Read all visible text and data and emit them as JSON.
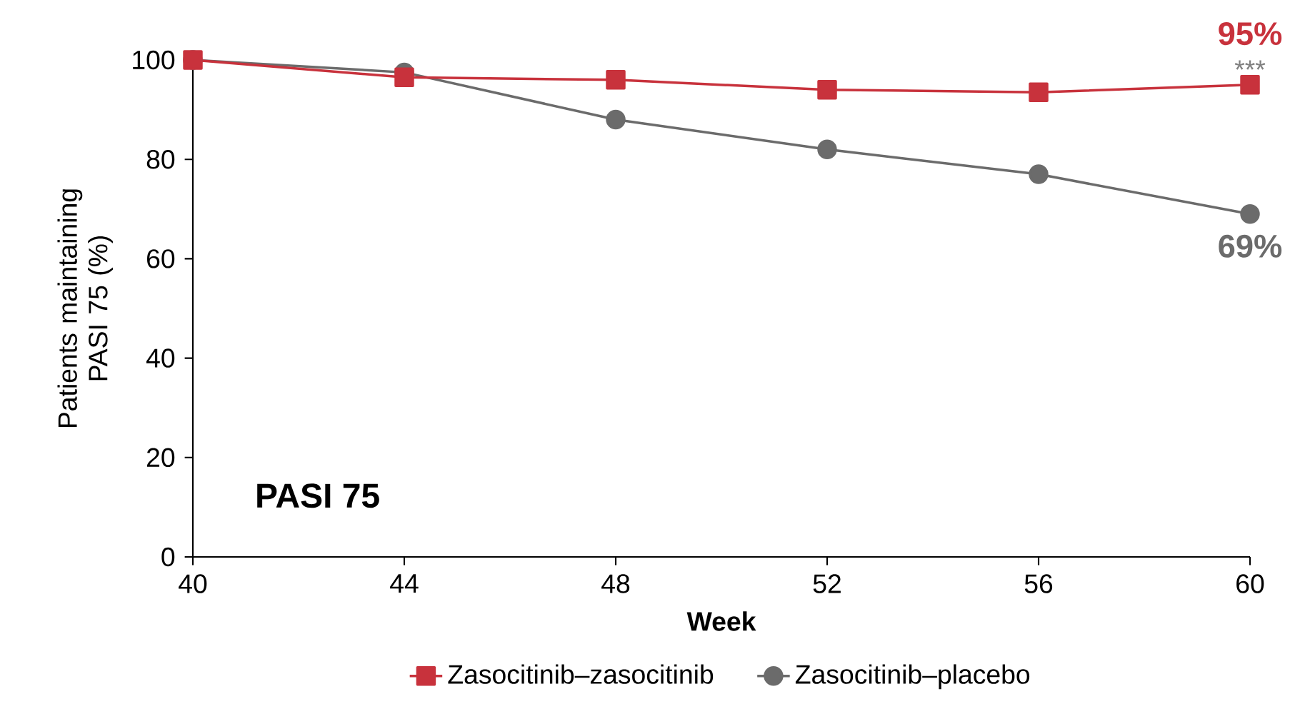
{
  "chart_data": {
    "type": "line",
    "xlabel": "Week",
    "ylabel": "Patients maintaining PASI 75 (%)",
    "x": [
      40,
      44,
      48,
      52,
      56,
      60
    ],
    "series": [
      {
        "name": "Zasocitinib–zasocitinib",
        "color": "#c8323c",
        "marker": "square",
        "values": [
          100,
          96.5,
          96,
          94,
          93.5,
          95
        ],
        "value_labels": [
          null,
          null,
          null,
          null,
          null,
          "95%"
        ]
      },
      {
        "name": "Zasocitinib–placebo",
        "color": "#6b6b6b",
        "marker": "circle",
        "values": [
          100,
          97.5,
          88,
          82,
          77,
          69
        ],
        "value_labels": [
          null,
          null,
          null,
          null,
          null,
          "69%"
        ]
      }
    ],
    "xlim": [
      40,
      60
    ],
    "xticks": [
      40,
      44,
      48,
      52,
      56,
      60
    ],
    "ylim": [
      0,
      100
    ],
    "yticks": [
      0,
      20,
      40,
      60,
      80,
      100
    ],
    "grid": false,
    "legend": "bottom",
    "line_style": "solid",
    "annotations": [
      {
        "text": "***",
        "x": 60,
        "y": 95
      },
      "PASI 75"
    ]
  }
}
